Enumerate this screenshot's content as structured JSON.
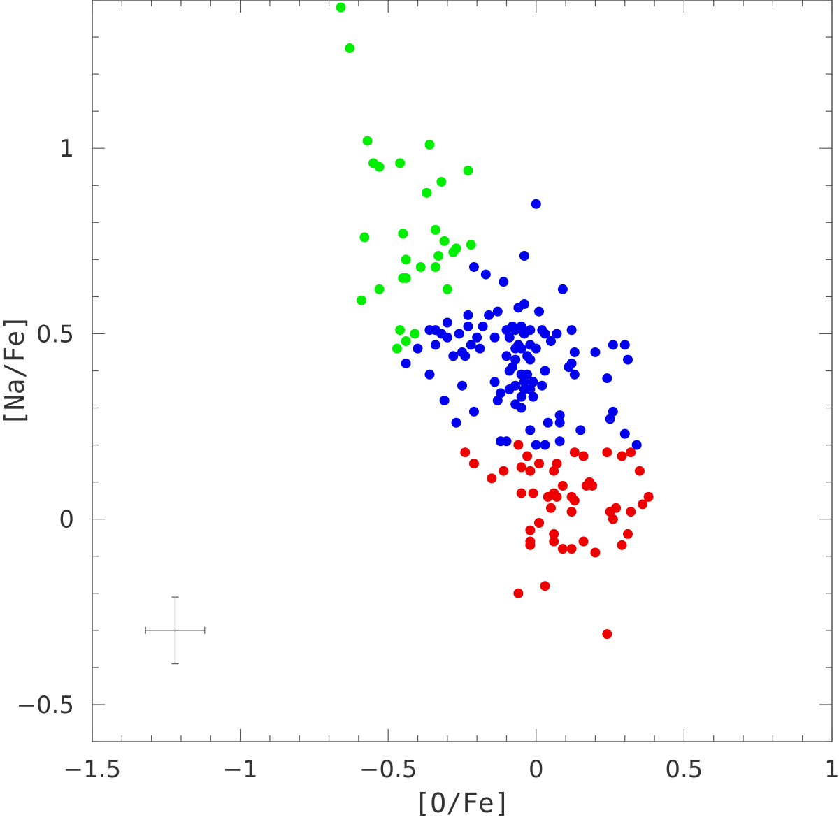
{
  "chart_data": {
    "type": "scatter",
    "xlabel": "[O/Fe]",
    "ylabel": "[Na/Fe]",
    "xlim": [
      -1.5,
      1.0
    ],
    "ylim": [
      -0.6,
      1.4
    ],
    "x_major_ticks": [
      -1.5,
      -1,
      -0.5,
      0,
      0.5,
      1
    ],
    "x_tick_labels": [
      "−1.5",
      "−1",
      "−0.5",
      "0",
      "0.5",
      "1"
    ],
    "y_major_ticks": [
      -0.5,
      0,
      0.5,
      1
    ],
    "y_tick_labels": [
      "−0.5",
      "0",
      "0.5",
      "1"
    ],
    "x_minor_step": 0.1,
    "y_minor_step": 0.1,
    "grid": false,
    "error_bar": {
      "x": -1.22,
      "y": -0.3,
      "xerr": 0.1,
      "yerr": 0.09
    },
    "series": [
      {
        "color": "#00ee00",
        "points": [
          [
            -0.66,
            1.38
          ],
          [
            -0.63,
            1.27
          ],
          [
            -0.57,
            1.02
          ],
          [
            -0.55,
            0.96
          ],
          [
            -0.53,
            0.95
          ],
          [
            -0.46,
            0.96
          ],
          [
            -0.36,
            1.01
          ],
          [
            -0.32,
            0.91
          ],
          [
            -0.23,
            0.94
          ],
          [
            -0.37,
            0.88
          ],
          [
            -0.58,
            0.76
          ],
          [
            -0.45,
            0.77
          ],
          [
            -0.34,
            0.78
          ],
          [
            -0.31,
            0.75
          ],
          [
            -0.27,
            0.73
          ],
          [
            -0.22,
            0.74
          ],
          [
            -0.44,
            0.7
          ],
          [
            -0.33,
            0.71
          ],
          [
            -0.28,
            0.72
          ],
          [
            -0.39,
            0.68
          ],
          [
            -0.34,
            0.68
          ],
          [
            -0.44,
            0.65
          ],
          [
            -0.45,
            0.65
          ],
          [
            -0.53,
            0.62
          ],
          [
            -0.3,
            0.62
          ],
          [
            -0.59,
            0.59
          ],
          [
            -0.46,
            0.51
          ],
          [
            -0.41,
            0.5
          ],
          [
            -0.44,
            0.48
          ],
          [
            -0.47,
            0.46
          ]
        ]
      },
      {
        "color": "#0000ee",
        "points": [
          [
            0.0,
            0.85
          ],
          [
            -0.04,
            0.71
          ],
          [
            -0.21,
            0.68
          ],
          [
            -0.17,
            0.66
          ],
          [
            -0.11,
            0.64
          ],
          [
            0.09,
            0.62
          ],
          [
            -0.04,
            0.58
          ],
          [
            -0.06,
            0.57
          ],
          [
            -0.13,
            0.56
          ],
          [
            -0.16,
            0.55
          ],
          [
            0.01,
            0.56
          ],
          [
            -0.23,
            0.55
          ],
          [
            -0.23,
            0.52
          ],
          [
            -0.3,
            0.53
          ],
          [
            -0.18,
            0.52
          ],
          [
            -0.05,
            0.52
          ],
          [
            -0.08,
            0.52
          ],
          [
            -0.36,
            0.51
          ],
          [
            -0.34,
            0.51
          ],
          [
            -0.32,
            0.5
          ],
          [
            -0.1,
            0.51
          ],
          [
            -0.07,
            0.51
          ],
          [
            -0.02,
            0.51
          ],
          [
            0.02,
            0.51
          ],
          [
            0.12,
            0.51
          ],
          [
            -0.26,
            0.5
          ],
          [
            -0.04,
            0.5
          ],
          [
            0.03,
            0.5
          ],
          [
            0.07,
            0.5
          ],
          [
            -0.3,
            0.49
          ],
          [
            -0.2,
            0.49
          ],
          [
            -0.14,
            0.49
          ],
          [
            -0.09,
            0.49
          ],
          [
            0.05,
            0.48
          ],
          [
            -0.22,
            0.47
          ],
          [
            -0.06,
            0.47
          ],
          [
            -0.02,
            0.47
          ],
          [
            0.26,
            0.47
          ],
          [
            0.3,
            0.47
          ],
          [
            -0.4,
            0.46
          ],
          [
            -0.34,
            0.47
          ],
          [
            -0.07,
            0.46
          ],
          [
            -0.25,
            0.45
          ],
          [
            -0.19,
            0.46
          ],
          [
            -0.05,
            0.46
          ],
          [
            0.0,
            0.46
          ],
          [
            0.13,
            0.45
          ],
          [
            0.2,
            0.45
          ],
          [
            -0.28,
            0.44
          ],
          [
            -0.24,
            0.44
          ],
          [
            -0.1,
            0.44
          ],
          [
            -0.03,
            0.44
          ],
          [
            0.31,
            0.43
          ],
          [
            -0.07,
            0.43
          ],
          [
            -0.02,
            0.43
          ],
          [
            0.12,
            0.42
          ],
          [
            -0.44,
            0.42
          ],
          [
            -0.08,
            0.41
          ],
          [
            0.03,
            0.4
          ],
          [
            0.11,
            0.41
          ],
          [
            -0.09,
            0.4
          ],
          [
            -0.05,
            0.39
          ],
          [
            0.13,
            0.39
          ],
          [
            -0.36,
            0.39
          ],
          [
            -0.03,
            0.39
          ],
          [
            0.24,
            0.38
          ],
          [
            -0.01,
            0.37
          ],
          [
            -0.14,
            0.37
          ],
          [
            -0.04,
            0.37
          ],
          [
            -0.25,
            0.36
          ],
          [
            0.02,
            0.36
          ],
          [
            -0.07,
            0.36
          ],
          [
            -0.09,
            0.35
          ],
          [
            -0.04,
            0.35
          ],
          [
            -0.02,
            0.35
          ],
          [
            -0.12,
            0.34
          ],
          [
            -0.05,
            0.33
          ],
          [
            -0.01,
            0.33
          ],
          [
            -0.31,
            0.32
          ],
          [
            -0.13,
            0.32
          ],
          [
            -0.07,
            0.31
          ],
          [
            -0.05,
            0.3
          ],
          [
            -0.21,
            0.29
          ],
          [
            0.26,
            0.29
          ],
          [
            0.08,
            0.28
          ],
          [
            0.25,
            0.27
          ],
          [
            -0.27,
            0.26
          ],
          [
            0.04,
            0.26
          ],
          [
            0.08,
            0.26
          ],
          [
            -0.02,
            0.24
          ],
          [
            0.15,
            0.24
          ],
          [
            0.3,
            0.23
          ],
          [
            -0.12,
            0.21
          ],
          [
            -0.1,
            0.21
          ],
          [
            0.08,
            0.21
          ],
          [
            0.0,
            0.2
          ],
          [
            0.03,
            0.2
          ],
          [
            0.34,
            0.2
          ]
        ]
      },
      {
        "color": "#ee0000",
        "points": [
          [
            -0.06,
            0.2
          ],
          [
            -0.24,
            0.18
          ],
          [
            0.13,
            0.18
          ],
          [
            0.16,
            0.17
          ],
          [
            0.24,
            0.18
          ],
          [
            0.32,
            0.18
          ],
          [
            0.29,
            0.17
          ],
          [
            -0.03,
            0.17
          ],
          [
            0.07,
            0.15
          ],
          [
            -0.21,
            0.15
          ],
          [
            -0.05,
            0.14
          ],
          [
            0.01,
            0.15
          ],
          [
            -0.11,
            0.13
          ],
          [
            0.06,
            0.13
          ],
          [
            -0.02,
            0.13
          ],
          [
            0.35,
            0.13
          ],
          [
            -0.15,
            0.11
          ],
          [
            0.18,
            0.1
          ],
          [
            0.17,
            0.09
          ],
          [
            0.09,
            0.09
          ],
          [
            0.19,
            0.09
          ],
          [
            -0.05,
            0.07
          ],
          [
            -0.01,
            0.07
          ],
          [
            0.06,
            0.07
          ],
          [
            0.12,
            0.06
          ],
          [
            0.04,
            0.06
          ],
          [
            0.07,
            0.06
          ],
          [
            0.13,
            0.05
          ],
          [
            0.38,
            0.06
          ],
          [
            0.36,
            0.04
          ],
          [
            0.05,
            0.03
          ],
          [
            0.12,
            0.02
          ],
          [
            0.27,
            0.03
          ],
          [
            0.25,
            0.02
          ],
          [
            0.32,
            0.02
          ],
          [
            0.26,
            0.0
          ],
          [
            0.01,
            -0.01
          ],
          [
            -0.02,
            -0.03
          ],
          [
            0.06,
            -0.04
          ],
          [
            0.31,
            -0.04
          ],
          [
            -0.02,
            -0.06
          ],
          [
            0.06,
            -0.06
          ],
          [
            0.16,
            -0.06
          ],
          [
            -0.02,
            -0.07
          ],
          [
            0.29,
            -0.07
          ],
          [
            0.09,
            -0.08
          ],
          [
            0.12,
            -0.08
          ],
          [
            0.2,
            -0.09
          ],
          [
            0.03,
            -0.18
          ],
          [
            -0.06,
            -0.2
          ],
          [
            0.24,
            -0.31
          ]
        ]
      }
    ]
  }
}
